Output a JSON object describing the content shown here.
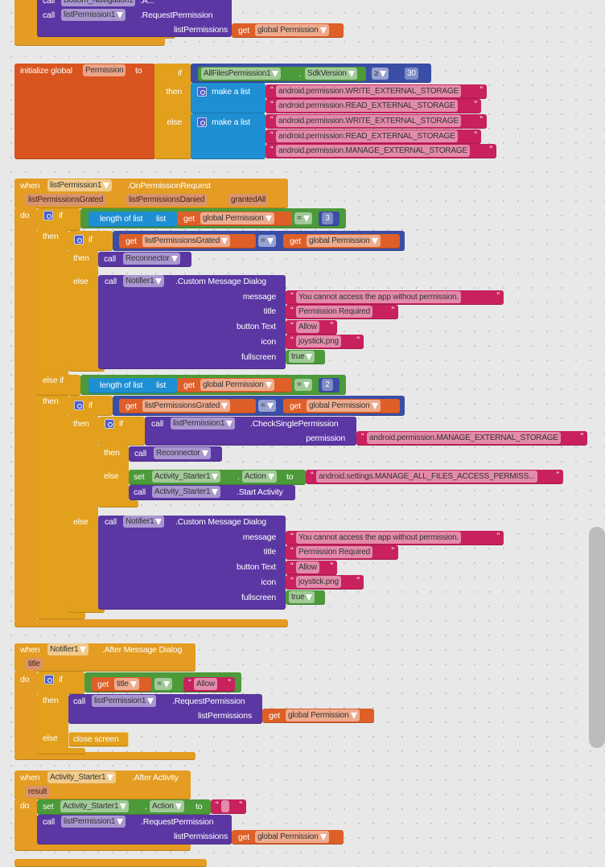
{
  "top_block": {
    "call_partial": "call",
    "component_partial": "Bottom_Navigation1",
    "method_partial": ".A...",
    "call": "call",
    "component": "listPermission1",
    "method": ".RequestPermission",
    "param": "listPermissions",
    "get": "get",
    "variable": "global Permission"
  },
  "init_global": {
    "label": "initialize global",
    "name": "Permission",
    "to": "to",
    "if": "if",
    "then": "then",
    "else": "else",
    "component": "AllFilesPermission1",
    "dot": ".",
    "property": "SdkVersion",
    "operator": "≥",
    "number": "30",
    "make_list": "make a list",
    "then_items": [
      "android.permission.WRITE_EXTERNAL_STORAGE",
      "android.permission.READ_EXTERNAL_STORAGE"
    ],
    "else_items": [
      "android.permission.WRITE_EXTERNAL_STORAGE",
      "android.permission.READ_EXTERNAL_STORAGE",
      "android.permission.MANAGE_EXTERNAL_STORAGE"
    ]
  },
  "on_permission_request": {
    "when": "when",
    "component": "listPermission1",
    "event": ".OnPermissionRequest",
    "params": [
      "listPermissionsGrated",
      "listPermissionsDanied",
      "grantedAll"
    ],
    "do": "do",
    "if": "if",
    "else_if": "else if",
    "then": "then",
    "else": "else",
    "length_of_list": "length of list",
    "list": "list",
    "get": "get",
    "global_var": "global Permission",
    "granted_var": "listPermissionsGrated",
    "eq": "=",
    "num1": "3",
    "num2": "2",
    "call": "call",
    "reconnector": "Reconnector",
    "notifier": "Notifier1",
    "dialog_method": ".Custom Message Dialog",
    "dialog_params": [
      "message",
      "title",
      "button Text",
      "icon",
      "fullscreen"
    ],
    "dialog_values": [
      "You cannot access the app without permission.",
      "Permission Required",
      "Allow",
      "joystick.png",
      "true"
    ],
    "check_component": "listPermission1",
    "check_method": ".CheckSinglePermission",
    "check_param": "permission",
    "check_value": "android.permission.MANAGE_EXTERNAL_STORAGE",
    "set": "set",
    "activity_component": "Activity_Starter1",
    "dot": ".",
    "action": "Action",
    "to": "to",
    "action_value": "android.settings.MANAGE_ALL_FILES_ACCESS_PERMISS...",
    "start_method": ".Start Activity"
  },
  "after_message_dialog": {
    "when": "when",
    "component": "Notifier1",
    "event": ".After Message Dialog",
    "param": "title",
    "do": "do",
    "if": "if",
    "then": "then",
    "else": "else",
    "get": "get",
    "var": "title",
    "eq": "=",
    "value": "Allow",
    "call": "call",
    "req_component": "listPermission1",
    "req_method": ".RequestPermission",
    "req_param": "listPermissions",
    "global_var": "global Permission",
    "close_screen": "close screen"
  },
  "after_activity": {
    "when": "when",
    "component": "Activity_Starter1",
    "event": ".After Activity",
    "param": "result",
    "do": "do",
    "set": "set",
    "dot": ".",
    "property": "Action",
    "to": "to",
    "value": "",
    "call": "call",
    "req_component": "listPermission1",
    "req_method": ".RequestPermission",
    "req_param": "listPermissions",
    "get": "get",
    "global_var": "global Permission"
  },
  "colors": {
    "event": "#E49C22",
    "control": "#E2A01C",
    "variable_init": "#D9541E",
    "get": "#DE5F28",
    "component": "#5B37A3",
    "compare": "#3A4EA6",
    "logic": "#4C9A3A",
    "text": "#C9215E",
    "list": "#1E8FD2"
  }
}
